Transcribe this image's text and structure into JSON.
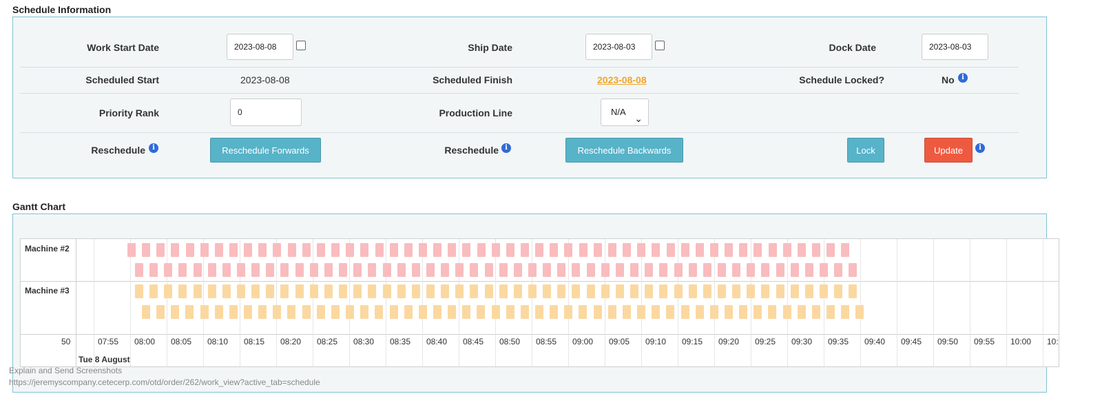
{
  "schedule": {
    "title": "Schedule Information",
    "work_start_label": "Work Start Date",
    "work_start_value": "2023-08-08",
    "ship_label": "Ship Date",
    "ship_value": "2023-08-03",
    "dock_label": "Dock Date",
    "dock_value": "2023-08-03",
    "sched_start_label": "Scheduled Start",
    "sched_start_value": "2023-08-08",
    "sched_finish_label": "Scheduled Finish",
    "sched_finish_value": "2023-08-08",
    "locked_label": "Schedule Locked?",
    "locked_value": "No",
    "priority_label": "Priority Rank",
    "priority_value": "0",
    "line_label": "Production Line",
    "line_value": "N/A",
    "reschedule_label": "Reschedule",
    "resched_fwd": "Reschedule Forwards",
    "resched_back": "Reschedule Backwards",
    "lock": "Lock",
    "update": "Update",
    "info_glyph": "i"
  },
  "gantt": {
    "title": "Gantt Chart",
    "machines": [
      "Machine #2",
      "Machine #3"
    ],
    "date_label": "Tue 8 August",
    "ticks": [
      "50",
      "07:55",
      "08:00",
      "08:05",
      "08:10",
      "08:15",
      "08:20",
      "08:25",
      "08:30",
      "08:35",
      "08:40",
      "08:45",
      "08:50",
      "08:55",
      "09:00",
      "09:05",
      "09:10",
      "09:15",
      "09:20",
      "09:25",
      "09:30",
      "09:35",
      "09:40",
      "09:45",
      "09:50",
      "09:55",
      "10:00",
      "10:"
    ],
    "colors": {
      "machine2": "#f9bcbf",
      "machine3": "#fbd8a0"
    }
  },
  "footer": {
    "line1": "Explain and Send Screenshots",
    "line2": "https://jeremyscompany.cetecerp.com/otd/order/262/work_view?active_tab=schedule"
  }
}
